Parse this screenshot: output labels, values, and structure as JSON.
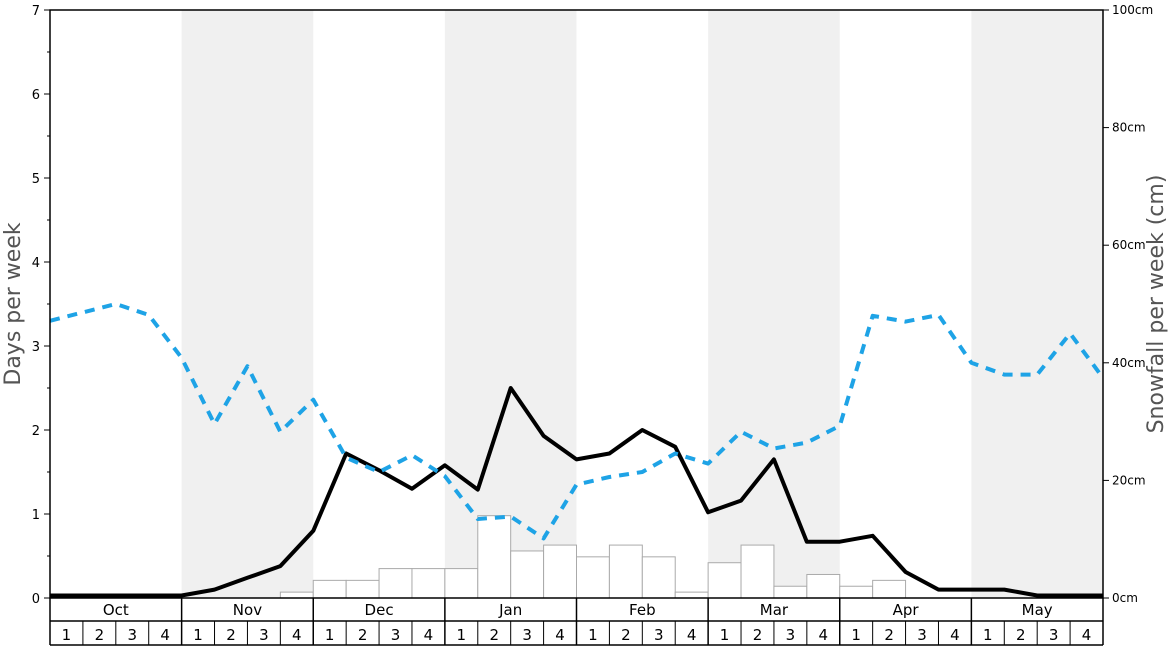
{
  "chart_data": {
    "type": "bar+line",
    "title": "",
    "months": [
      "Oct",
      "Nov",
      "Dec",
      "Jan",
      "Feb",
      "Mar",
      "Apr",
      "May"
    ],
    "week_labels": [
      "1",
      "2",
      "3",
      "4"
    ],
    "ylabel_left": "Days per week",
    "ylabel_right": "Snowfall per week (cm)",
    "ylim_left": [
      0,
      7
    ],
    "yticks_left": [
      0,
      1,
      2,
      3,
      4,
      5,
      6,
      7
    ],
    "ylim_right": [
      0,
      100
    ],
    "yticks_right": [
      "0cm",
      "20cm",
      "40cm",
      "60cm",
      "80cm",
      "100cm"
    ],
    "shaded_months": [
      "Nov",
      "Jan",
      "Mar",
      "May"
    ],
    "colors": {
      "snowfall_bars": "#ffffff",
      "bar_stroke": "#aaaaaa",
      "snow_days_line": "#000000",
      "sun_days_line": "#1ea3e6",
      "shade": "#f0f0f0"
    },
    "series": [
      {
        "kind": "bars",
        "axis": "right",
        "unit": "cm",
        "values": [
          0,
          0,
          0,
          0,
          0,
          0,
          0,
          1,
          3,
          3,
          5,
          5,
          5,
          14,
          8,
          9,
          7,
          9,
          7,
          1,
          6,
          9,
          2,
          4,
          2,
          3,
          0,
          0,
          0,
          0,
          0,
          0
        ]
      },
      {
        "kind": "line",
        "axis": "left",
        "style": "solid",
        "values": [
          0.03,
          0.03,
          0.03,
          0.03,
          0.03,
          0.1,
          0.24,
          0.38,
          0.8,
          1.72,
          1.52,
          1.3,
          1.58,
          1.29,
          2.5,
          1.93,
          1.65,
          1.72,
          2.0,
          1.8,
          1.02,
          1.16,
          1.65,
          0.67,
          0.67,
          0.74,
          0.31,
          0.1,
          0.1,
          0.1,
          0.03,
          0.03,
          0.03
        ]
      },
      {
        "kind": "line",
        "axis": "left",
        "style": "dashed",
        "values": [
          3.3,
          3.4,
          3.5,
          3.37,
          2.86,
          2.07,
          2.76,
          1.98,
          2.36,
          1.67,
          1.5,
          1.7,
          1.45,
          0.94,
          0.97,
          0.71,
          1.35,
          1.44,
          1.5,
          1.72,
          1.6,
          1.98,
          1.78,
          1.85,
          2.05,
          3.36,
          3.29,
          3.37,
          2.8,
          2.66,
          2.66,
          3.15,
          2.62
        ]
      }
    ]
  }
}
